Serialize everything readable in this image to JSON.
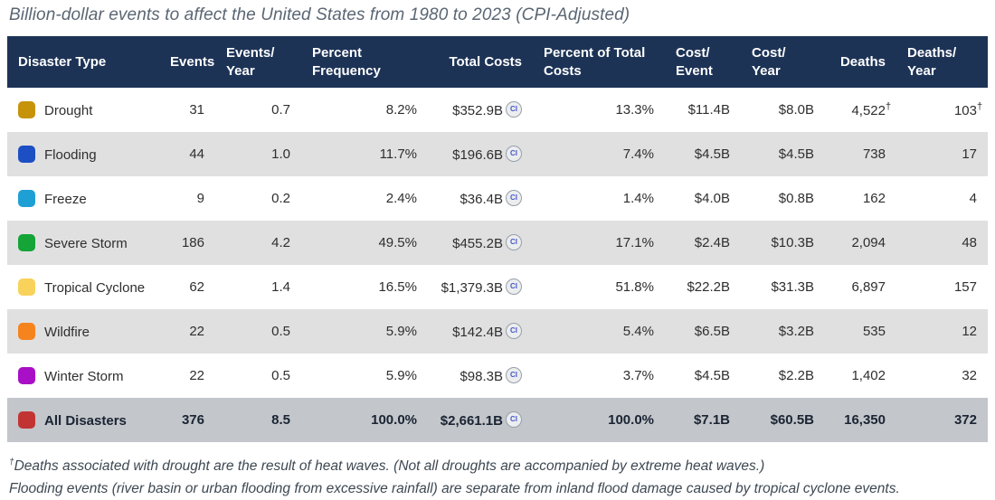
{
  "title": "Billion-dollar events to affect the United States from 1980 to 2023 (CPI-Adjusted)",
  "ci_label": "CI",
  "dagger": "†",
  "colors": {
    "header_bg": "#1d3356",
    "header_text": "#ffffff",
    "row_alt_bg": "#e0e0e1",
    "total_row_bg": "#c3c6ca",
    "title_text": "#5a6673"
  },
  "table": {
    "columns": [
      {
        "label": "Disaster Type",
        "align": "left",
        "width": 168
      },
      {
        "label": "Events",
        "align": "right",
        "width": 62
      },
      {
        "label": "Events/\nYear",
        "align": "left",
        "width": 95
      },
      {
        "label": "Percent\nFrequency",
        "align": "left",
        "width": 140
      },
      {
        "label": "Total Costs",
        "align": "right",
        "width": 116
      },
      {
        "label": "Percent of Total\nCosts",
        "align": "left",
        "width": 146
      },
      {
        "label": "Cost/\nEvent",
        "align": "left",
        "width": 84
      },
      {
        "label": "Cost/\nYear",
        "align": "left",
        "width": 93
      },
      {
        "label": "Deaths",
        "align": "right",
        "width": 79
      },
      {
        "label": "Deaths/\nYear",
        "align": "left",
        "width": 101
      }
    ],
    "rows": [
      {
        "type": "Drought",
        "swatch_color": "#c6930a",
        "events": "31",
        "events_year": "0.7",
        "pct_freq": "8.2%",
        "total_costs": "$352.9B",
        "ci": true,
        "pct_total": "13.3%",
        "cost_event": "$11.4B",
        "cost_year": "$8.0B",
        "deaths": "4,522",
        "deaths_dagger": true,
        "deaths_year": "103",
        "deaths_year_dagger": true,
        "total": false
      },
      {
        "type": "Flooding",
        "swatch_color": "#1c4fc4",
        "events": "44",
        "events_year": "1.0",
        "pct_freq": "11.7%",
        "total_costs": "$196.6B",
        "ci": true,
        "pct_total": "7.4%",
        "cost_event": "$4.5B",
        "cost_year": "$4.5B",
        "deaths": "738",
        "deaths_dagger": false,
        "deaths_year": "17",
        "deaths_year_dagger": false,
        "total": false
      },
      {
        "type": "Freeze",
        "swatch_color": "#1fa0d5",
        "events": "9",
        "events_year": "0.2",
        "pct_freq": "2.4%",
        "total_costs": "$36.4B",
        "ci": true,
        "pct_total": "1.4%",
        "cost_event": "$4.0B",
        "cost_year": "$0.8B",
        "deaths": "162",
        "deaths_dagger": false,
        "deaths_year": "4",
        "deaths_year_dagger": false,
        "total": false
      },
      {
        "type": "Severe Storm",
        "swatch_color": "#14a437",
        "events": "186",
        "events_year": "4.2",
        "pct_freq": "49.5%",
        "total_costs": "$455.2B",
        "ci": true,
        "pct_total": "17.1%",
        "cost_event": "$2.4B",
        "cost_year": "$10.3B",
        "deaths": "2,094",
        "deaths_dagger": false,
        "deaths_year": "48",
        "deaths_year_dagger": false,
        "total": false
      },
      {
        "type": "Tropical Cyclone",
        "swatch_color": "#f9d25c",
        "events": "62",
        "events_year": "1.4",
        "pct_freq": "16.5%",
        "total_costs": "$1,379.3B",
        "ci": true,
        "pct_total": "51.8%",
        "cost_event": "$22.2B",
        "cost_year": "$31.3B",
        "deaths": "6,897",
        "deaths_dagger": false,
        "deaths_year": "157",
        "deaths_year_dagger": false,
        "total": false
      },
      {
        "type": "Wildfire",
        "swatch_color": "#f5841f",
        "events": "22",
        "events_year": "0.5",
        "pct_freq": "5.9%",
        "total_costs": "$142.4B",
        "ci": true,
        "pct_total": "5.4%",
        "cost_event": "$6.5B",
        "cost_year": "$3.2B",
        "deaths": "535",
        "deaths_dagger": false,
        "deaths_year": "12",
        "deaths_year_dagger": false,
        "total": false
      },
      {
        "type": "Winter Storm",
        "swatch_color": "#a90fc6",
        "events": "22",
        "events_year": "0.5",
        "pct_freq": "5.9%",
        "total_costs": "$98.3B",
        "ci": true,
        "pct_total": "3.7%",
        "cost_event": "$4.5B",
        "cost_year": "$2.2B",
        "deaths": "1,402",
        "deaths_dagger": false,
        "deaths_year": "32",
        "deaths_year_dagger": false,
        "total": false
      },
      {
        "type": "All Disasters",
        "swatch_color": "#c23434",
        "events": "376",
        "events_year": "8.5",
        "pct_freq": "100.0%",
        "total_costs": "$2,661.1B",
        "ci": true,
        "pct_total": "100.0%",
        "cost_event": "$7.1B",
        "cost_year": "$60.5B",
        "deaths": "16,350",
        "deaths_dagger": false,
        "deaths_year": "372",
        "deaths_year_dagger": false,
        "total": true
      }
    ]
  },
  "footnotes": [
    {
      "sup": "†",
      "text": "Deaths associated with drought are the result of heat waves. (Not all droughts are accompanied by extreme heat waves.)"
    },
    {
      "sup": "",
      "text": "Flooding events (river basin or urban flooding from excessive rainfall) are separate from inland flood damage caused by tropical cyclone events."
    }
  ],
  "chart_data": {
    "type": "table",
    "title": "Billion-dollar events to affect the United States from 1980 to 2023 (CPI-Adjusted)",
    "columns": [
      "Disaster Type",
      "Events",
      "Events/Year",
      "Percent Frequency",
      "Total Costs",
      "Percent of Total Costs",
      "Cost/Event",
      "Cost/Year",
      "Deaths",
      "Deaths/Year"
    ],
    "rows": [
      [
        "Drought",
        31,
        0.7,
        "8.2%",
        "$352.9B",
        "13.3%",
        "$11.4B",
        "$8.0B",
        "4,522†",
        "103†"
      ],
      [
        "Flooding",
        44,
        1.0,
        "11.7%",
        "$196.6B",
        "7.4%",
        "$4.5B",
        "$4.5B",
        "738",
        "17"
      ],
      [
        "Freeze",
        9,
        0.2,
        "2.4%",
        "$36.4B",
        "1.4%",
        "$4.0B",
        "$0.8B",
        "162",
        "4"
      ],
      [
        "Severe Storm",
        186,
        4.2,
        "49.5%",
        "$455.2B",
        "17.1%",
        "$2.4B",
        "$10.3B",
        "2,094",
        "48"
      ],
      [
        "Tropical Cyclone",
        62,
        1.4,
        "16.5%",
        "$1,379.3B",
        "51.8%",
        "$22.2B",
        "$31.3B",
        "6,897",
        "157"
      ],
      [
        "Wildfire",
        22,
        0.5,
        "5.9%",
        "$142.4B",
        "5.4%",
        "$6.5B",
        "$3.2B",
        "535",
        "12"
      ],
      [
        "Winter Storm",
        22,
        0.5,
        "5.9%",
        "$98.3B",
        "3.7%",
        "$4.5B",
        "$2.2B",
        "1,402",
        "32"
      ],
      [
        "All Disasters",
        376,
        8.5,
        "100.0%",
        "$2,661.1B",
        "100.0%",
        "$7.1B",
        "$60.5B",
        "16,350",
        "372"
      ]
    ],
    "footnotes": [
      "†Deaths associated with drought are the result of heat waves. (Not all droughts are accompanied by extreme heat waves.)",
      "Flooding events (river basin or urban flooding from excessive rainfall) are separate from inland flood damage caused by tropical cyclone events."
    ]
  }
}
